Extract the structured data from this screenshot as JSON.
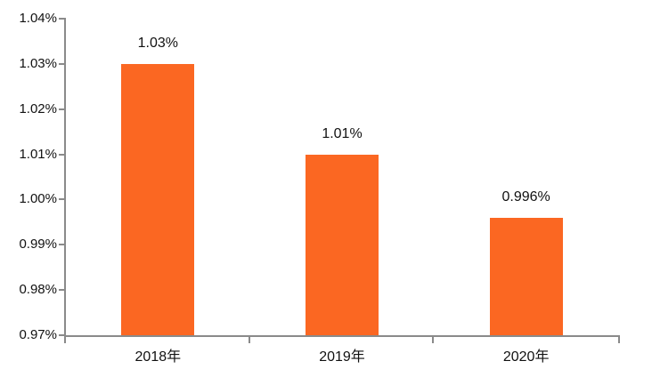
{
  "page": {
    "background": "#ffffff"
  },
  "chart_data": {
    "type": "bar",
    "title": "",
    "xlabel": "",
    "ylabel": "",
    "categories": [
      "2018年",
      "2019年",
      "2020年"
    ],
    "values": [
      1.03,
      1.01,
      0.996
    ],
    "value_labels": [
      "1.03%",
      "1.01%",
      "0.996%"
    ],
    "unit": "%",
    "ylim": [
      0.97,
      1.04
    ],
    "ytick_step": 0.01,
    "y_ticks": [
      {
        "value": 1.04,
        "label": "1.04%"
      },
      {
        "value": 1.03,
        "label": "1.03%"
      },
      {
        "value": 1.02,
        "label": "1.02%"
      },
      {
        "value": 1.01,
        "label": "1.01%"
      },
      {
        "value": 1.0,
        "label": "1.00%"
      },
      {
        "value": 0.99,
        "label": "0.99%"
      },
      {
        "value": 0.98,
        "label": "0.98%"
      },
      {
        "value": 0.97,
        "label": "0.97%"
      }
    ],
    "grid": false,
    "legend": null,
    "colors": {
      "bar_fill": "#fb6722",
      "axis": "#8a8a8a",
      "text": "#111111"
    }
  }
}
